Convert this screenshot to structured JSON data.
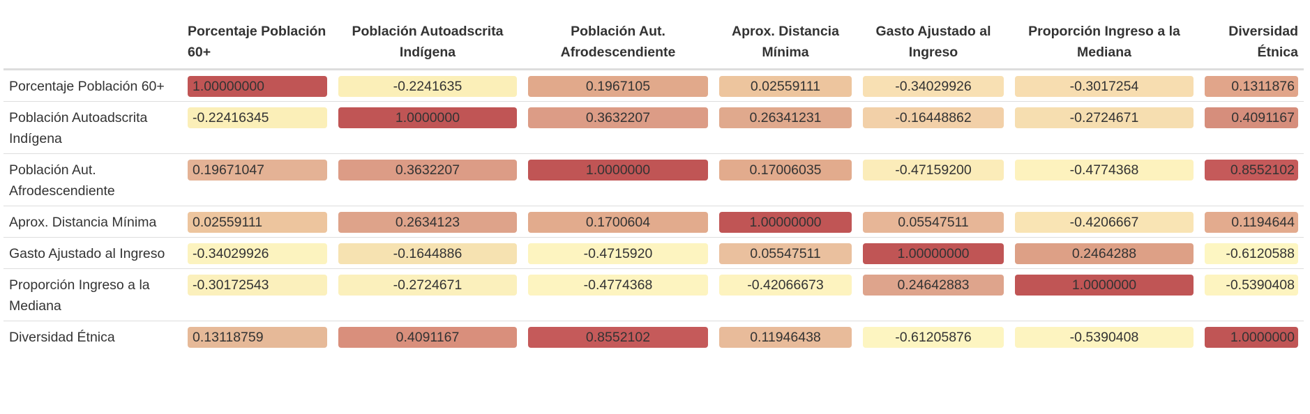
{
  "chart_data": {
    "type": "table",
    "columns": [
      "Porcentaje Población 60+",
      "Población Autoadscrita Indígena",
      "Población Aut. Afrodescendiente",
      "Aprox. Distancia Mínima",
      "Gasto Ajustado al Ingreso",
      "Proporción Ingreso a la Mediana",
      "Diversidad Étnica"
    ],
    "rows": [
      {
        "label": "Porcentaje Población 60+",
        "cells": [
          {
            "text": "1.00000000",
            "value": 1.0,
            "color": "#c05555"
          },
          {
            "text": "-0.2241635",
            "value": -0.2241635,
            "color": "#fbefb8"
          },
          {
            "text": "0.1967105",
            "value": 0.1967105,
            "color": "#e1a98b"
          },
          {
            "text": "0.02559111",
            "value": 0.02559111,
            "color": "#edc59e"
          },
          {
            "text": "-0.34029926",
            "value": -0.34029926,
            "color": "#f8e0b3"
          },
          {
            "text": "-0.3017254",
            "value": -0.3017254,
            "color": "#f7ddb0"
          },
          {
            "text": "0.1311876",
            "value": 0.1311876,
            "color": "#e1a58a"
          }
        ]
      },
      {
        "label": "Población Autoadscrita Indígena",
        "cells": [
          {
            "text": "-0.22416345",
            "value": -0.22416345,
            "color": "#fbefb8"
          },
          {
            "text": "1.0000000",
            "value": 1.0,
            "color": "#c05555"
          },
          {
            "text": "0.3632207",
            "value": 0.3632207,
            "color": "#dc9c86"
          },
          {
            "text": "0.26341231",
            "value": 0.26341231,
            "color": "#e0a98d"
          },
          {
            "text": "-0.16448862",
            "value": -0.16448862,
            "color": "#f2d0a8"
          },
          {
            "text": "-0.2724671",
            "value": -0.2724671,
            "color": "#f6deb0"
          },
          {
            "text": "0.4091167",
            "value": 0.4091167,
            "color": "#d68e7c"
          }
        ]
      },
      {
        "label": "Población Aut. Afrodescendiente",
        "cells": [
          {
            "text": "0.19671047",
            "value": 0.19671047,
            "color": "#e4b295"
          },
          {
            "text": "0.3632207",
            "value": 0.3632207,
            "color": "#dc9c86"
          },
          {
            "text": "1.0000000",
            "value": 1.0,
            "color": "#c05555"
          },
          {
            "text": "0.17006035",
            "value": 0.17006035,
            "color": "#e2ab8d"
          },
          {
            "text": "-0.47159200",
            "value": -0.471592,
            "color": "#fbecb9"
          },
          {
            "text": "-0.4774368",
            "value": -0.4774368,
            "color": "#fdf2be"
          },
          {
            "text": "0.8552102",
            "value": 0.8552102,
            "color": "#c55a5a"
          }
        ]
      },
      {
        "label": "Aprox. Distancia Mínima",
        "cells": [
          {
            "text": "0.02559111",
            "value": 0.02559111,
            "color": "#edc59e"
          },
          {
            "text": "0.2634123",
            "value": 0.2634123,
            "color": "#dea38a"
          },
          {
            "text": "0.1700604",
            "value": 0.1700604,
            "color": "#e2ab8d"
          },
          {
            "text": "1.00000000",
            "value": 1.0,
            "color": "#c05555"
          },
          {
            "text": "0.05547511",
            "value": 0.05547511,
            "color": "#e7b697"
          },
          {
            "text": "-0.4206667",
            "value": -0.4206667,
            "color": "#f9e4b4"
          },
          {
            "text": "0.1194644",
            "value": 0.1194644,
            "color": "#e3ab8e"
          }
        ]
      },
      {
        "label": "Gasto Ajustado al Ingreso",
        "cells": [
          {
            "text": "-0.34029926",
            "value": -0.34029926,
            "color": "#fcf3bf"
          },
          {
            "text": "-0.1644886",
            "value": -0.1644886,
            "color": "#f6e2b1"
          },
          {
            "text": "-0.4715920",
            "value": -0.471592,
            "color": "#fdf4c0"
          },
          {
            "text": "0.05547511",
            "value": 0.05547511,
            "color": "#eac09e"
          },
          {
            "text": "1.00000000",
            "value": 1.0,
            "color": "#c05555"
          },
          {
            "text": "0.2464288",
            "value": 0.2464288,
            "color": "#dda086"
          },
          {
            "text": "-0.6120588",
            "value": -0.6120588,
            "color": "#fdf6c2"
          }
        ]
      },
      {
        "label": "Proporción Ingreso a la Mediana",
        "cells": [
          {
            "text": "-0.30172543",
            "value": -0.30172543,
            "color": "#fbf0bc"
          },
          {
            "text": "-0.2724671",
            "value": -0.2724671,
            "color": "#fbf0bc"
          },
          {
            "text": "-0.4774368",
            "value": -0.4774368,
            "color": "#fdf4c0"
          },
          {
            "text": "-0.42066673",
            "value": -0.42066673,
            "color": "#fdf3bf"
          },
          {
            "text": "0.24642883",
            "value": 0.24642883,
            "color": "#dea48c"
          },
          {
            "text": "1.0000000",
            "value": 1.0,
            "color": "#c05555"
          },
          {
            "text": "-0.5390408",
            "value": -0.5390408,
            "color": "#fdf4c0"
          }
        ]
      },
      {
        "label": "Diversidad Étnica",
        "cells": [
          {
            "text": "0.13118759",
            "value": 0.13118759,
            "color": "#e6b998"
          },
          {
            "text": "0.4091167",
            "value": 0.4091167,
            "color": "#d98f7c"
          },
          {
            "text": "0.8552102",
            "value": 0.8552102,
            "color": "#c55a5a"
          },
          {
            "text": "0.11946438",
            "value": 0.11946438,
            "color": "#e8bb9a"
          },
          {
            "text": "-0.61205876",
            "value": -0.61205876,
            "color": "#fdf5c1"
          },
          {
            "text": "-0.5390408",
            "value": -0.5390408,
            "color": "#fdf4c0"
          },
          {
            "text": "1.0000000",
            "value": 1.0,
            "color": "#c05555"
          }
        ]
      }
    ]
  }
}
